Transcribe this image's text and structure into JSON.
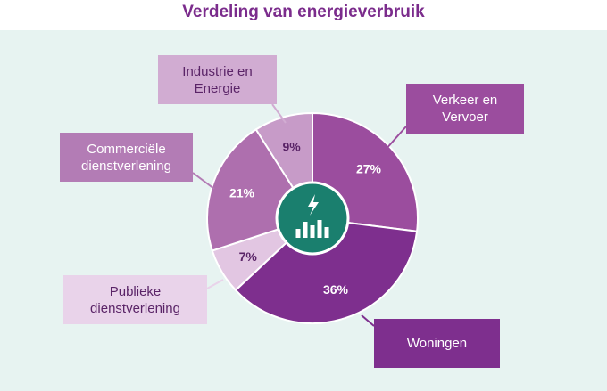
{
  "header": {
    "title": "Verdeling van energieverbruik"
  },
  "chart_data": {
    "type": "pie",
    "title": "Verdeling van energieverbruik",
    "slices": [
      {
        "label": "Verkeer en Vervoer",
        "value": 27,
        "value_label": "27%",
        "color": "#9b4d9e",
        "label_bg": "#9b4d9e",
        "label_fg": "#ffffff"
      },
      {
        "label": "Woningen",
        "value": 36,
        "value_label": "36%",
        "color": "#7e2f8e",
        "label_bg": "#7e2f8e",
        "label_fg": "#ffffff"
      },
      {
        "label": "Publieke dienstverlening",
        "value": 7,
        "value_label": "7%",
        "color": "#e2c6e2",
        "label_bg": "#e9d3ea",
        "label_fg": "#5a2467"
      },
      {
        "label": "Commerciële dienstverlening",
        "value": 21,
        "value_label": "21%",
        "color": "#ae6fae",
        "label_bg": "#b37cb5",
        "label_fg": "#ffffff"
      },
      {
        "label": "Industrie en Energie",
        "value": 9,
        "value_label": "9%",
        "color": "#c79bc8",
        "label_bg": "#d1acd2",
        "label_fg": "#5a2467"
      }
    ],
    "center_icon": "energy-bars-icon",
    "center_color": "#1a7f6e",
    "text_color": "#5a2467",
    "legend": "callout-boxes"
  }
}
